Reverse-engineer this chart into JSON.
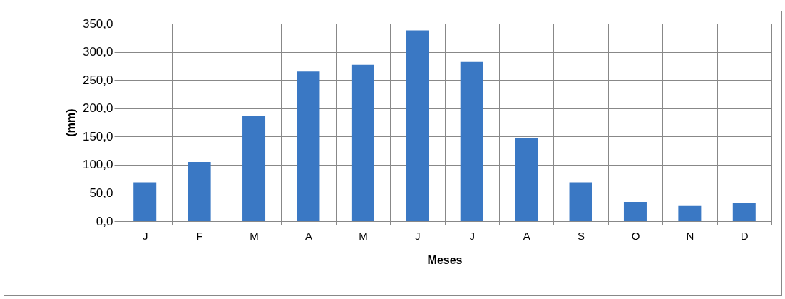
{
  "chart_data": {
    "type": "bar",
    "xlabel": "Meses",
    "ylabel": "(mm)",
    "categories": [
      "J",
      "F",
      "M",
      "A",
      "M",
      "J",
      "J",
      "A",
      "S",
      "O",
      "N",
      "D"
    ],
    "values": [
      69,
      105,
      187,
      265,
      277,
      338,
      282,
      147,
      69,
      34,
      28,
      33
    ],
    "color": "#3a78c4",
    "ylim": [
      0,
      350
    ],
    "yticks": [
      {
        "value": 0,
        "label": "0,0"
      },
      {
        "value": 50,
        "label": "50,0"
      },
      {
        "value": 100,
        "label": "100,0"
      },
      {
        "value": 150,
        "label": "150,0"
      },
      {
        "value": 200,
        "label": "200,0"
      },
      {
        "value": 250,
        "label": "250,0"
      },
      {
        "value": 300,
        "label": "300,0"
      },
      {
        "value": 350,
        "label": "350,0"
      }
    ],
    "grid": true
  }
}
